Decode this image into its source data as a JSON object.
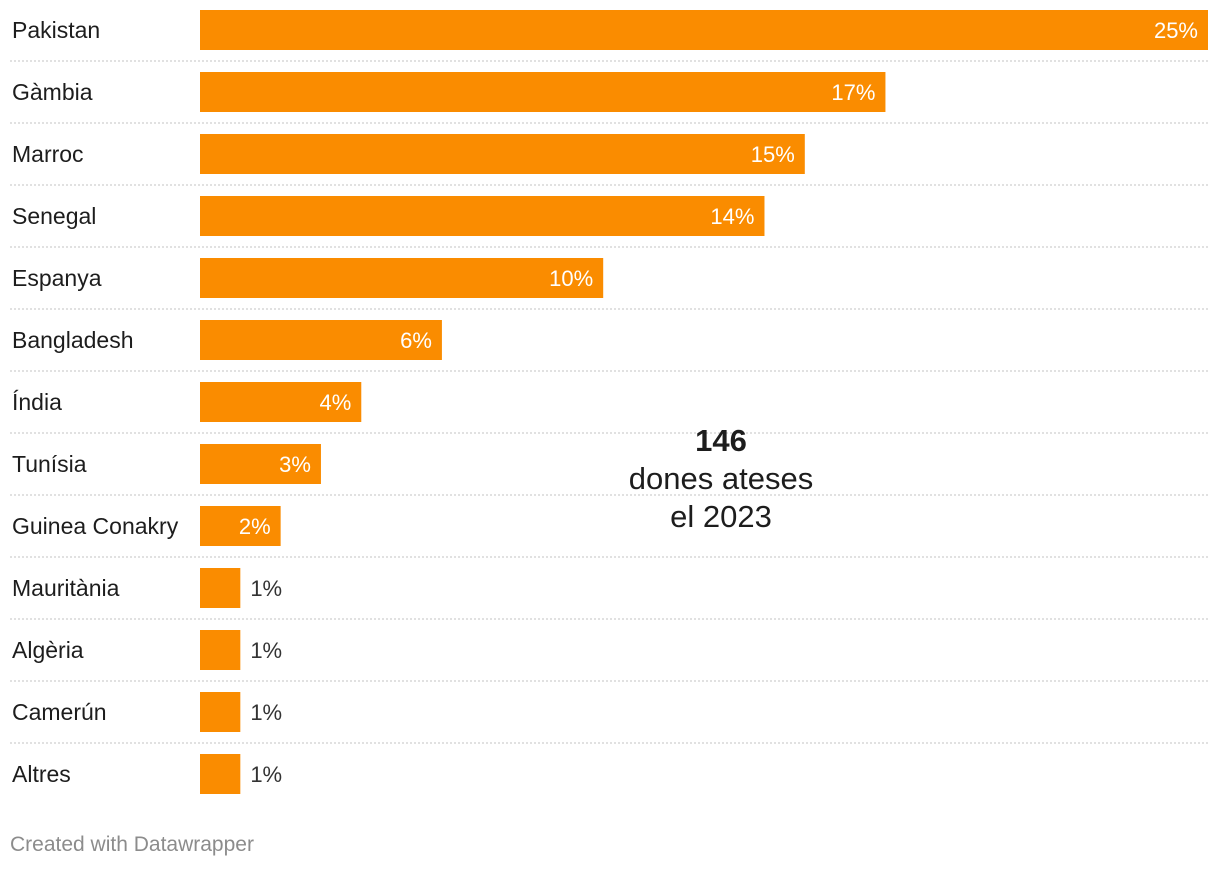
{
  "chart_data": {
    "type": "bar",
    "orientation": "horizontal",
    "categories": [
      "Pakistan",
      "Gàmbia",
      "Marroc",
      "Senegal",
      "Espanya",
      "Bangladesh",
      "Índia",
      "Tunísia",
      "Guinea Conakry",
      "Mauritània",
      "Algèria",
      "Camerún",
      "Altres"
    ],
    "values": [
      25,
      17,
      15,
      14,
      10,
      6,
      4,
      3,
      2,
      1,
      1,
      1,
      1
    ],
    "value_labels": [
      "25%",
      "17%",
      "15%",
      "14%",
      "10%",
      "6%",
      "4%",
      "3%",
      "2%",
      "1%",
      "1%",
      "1%",
      "1%"
    ],
    "unit": "%",
    "xlim": [
      0,
      25
    ],
    "bar_color": "#fa8c00",
    "grid": false
  },
  "annotation": {
    "number": "146",
    "line1": "dones ateses",
    "line2": "el 2023"
  },
  "footer": {
    "credit": "Created with Datawrapper"
  }
}
